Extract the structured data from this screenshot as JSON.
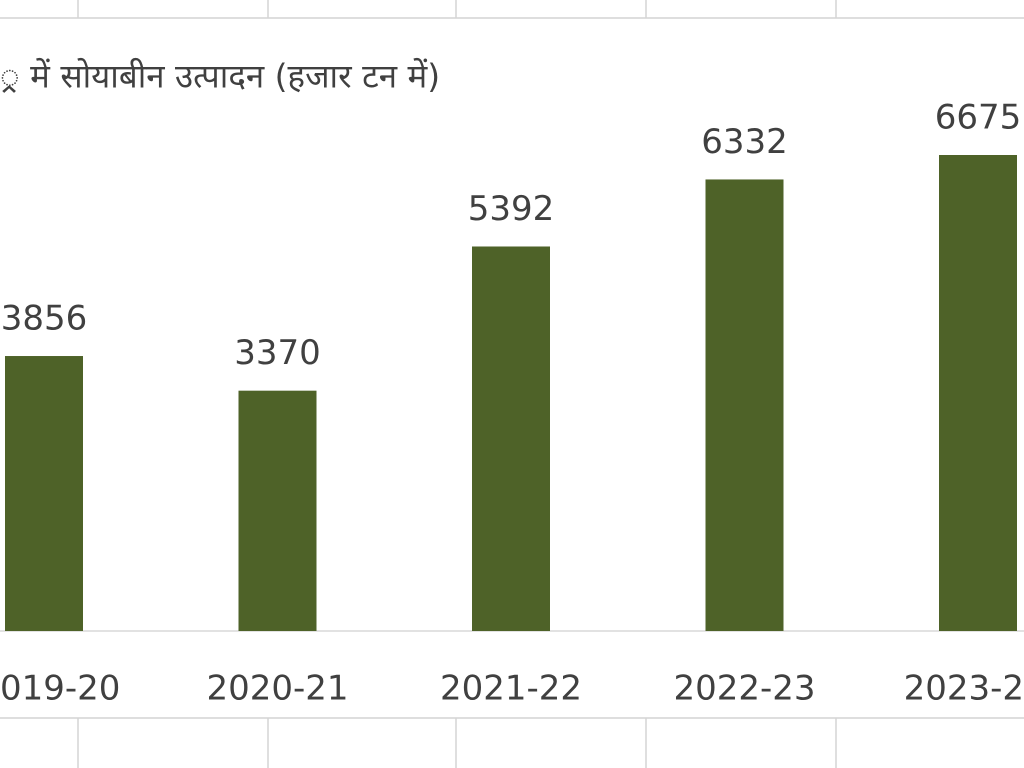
{
  "chart_data": {
    "type": "bar",
    "title": "्र में सोयाबीन उत्पादन (हजार टन में)",
    "categories": [
      "019-20",
      "2020-21",
      "2021-22",
      "2022-23",
      "2023-2"
    ],
    "values": [
      3856,
      3370,
      5392,
      6332,
      6675
    ],
    "color": "#4e6228"
  }
}
